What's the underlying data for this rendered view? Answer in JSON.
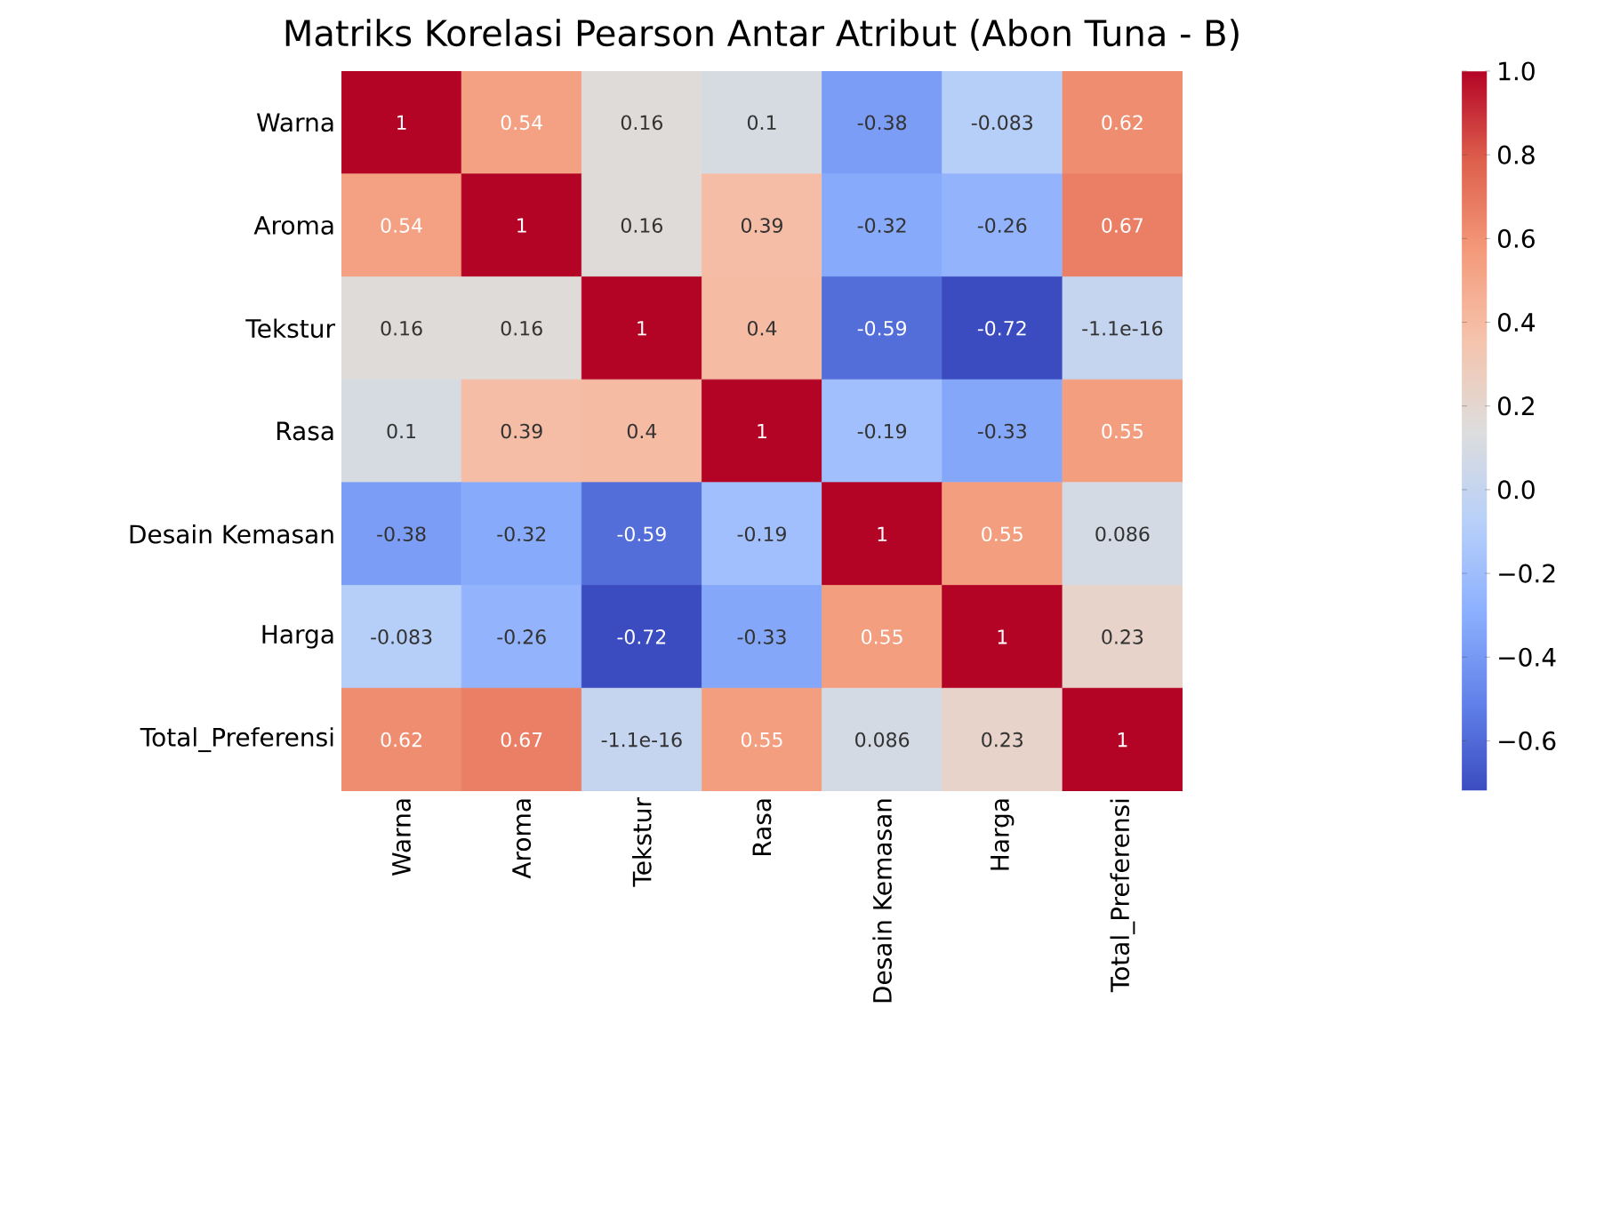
{
  "chart_data": {
    "type": "heatmap",
    "title": "Matriks Korelasi Pearson Antar Atribut (Abon Tuna - B)",
    "categories": [
      "Warna",
      "Aroma",
      "Tekstur",
      "Rasa",
      "Desain Kemasan",
      "Harga",
      "Total_Preferensi"
    ],
    "y_categories": [
      "Warna",
      "Aroma",
      "Tekstur",
      "Rasa",
      "Desain Kemasan",
      "Harga",
      "Total_Preferensi"
    ],
    "cells": [
      [
        1,
        0.54,
        0.16,
        0.1,
        -0.38,
        -0.083,
        0.62
      ],
      [
        0.54,
        1,
        0.16,
        0.39,
        -0.32,
        -0.26,
        0.67
      ],
      [
        0.16,
        0.16,
        1,
        0.4,
        -0.59,
        -0.72,
        -1.1e-16
      ],
      [
        0.1,
        0.39,
        0.4,
        1,
        -0.19,
        -0.33,
        0.55
      ],
      [
        -0.38,
        -0.32,
        -0.59,
        -0.19,
        1,
        0.55,
        0.086
      ],
      [
        -0.083,
        -0.26,
        -0.72,
        -0.33,
        0.55,
        1,
        0.23
      ],
      [
        0.62,
        0.67,
        -1.1e-16,
        0.55,
        0.086,
        0.23,
        1
      ]
    ],
    "data_labels": true,
    "clim": [
      -0.72,
      1
    ],
    "cticks": [
      {
        "value": -0.6,
        "label": "−0.6"
      },
      {
        "value": -0.4,
        "label": "−0.4"
      },
      {
        "value": -0.2,
        "label": "−0.2"
      },
      {
        "value": 0,
        "label": "0.0"
      },
      {
        "value": 0.2,
        "label": "0.2"
      },
      {
        "value": 0.4,
        "label": "0.4"
      },
      {
        "value": 0.6,
        "label": "0.6"
      },
      {
        "value": 0.8,
        "label": "0.8"
      },
      {
        "value": 1,
        "label": "1.0"
      }
    ]
  }
}
